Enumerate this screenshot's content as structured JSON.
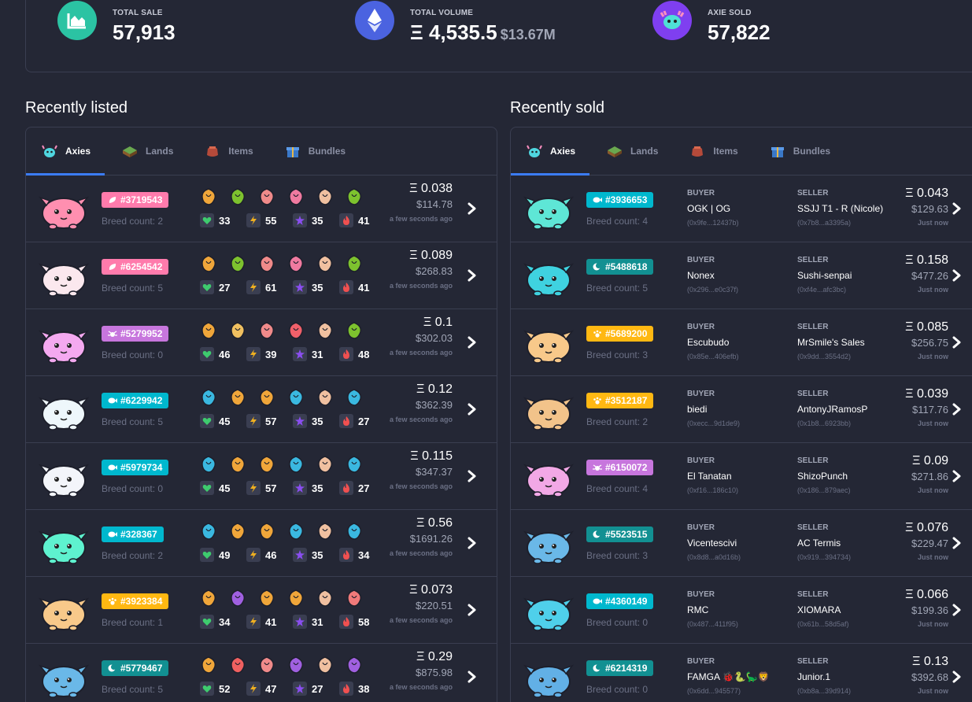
{
  "stats": {
    "total_sale": {
      "label": "TOTAL SALE",
      "value": "57,913"
    },
    "total_volume": {
      "label": "TOTAL VOLUME",
      "value": "Ξ 4,535.5",
      "sub": "$13.67M"
    },
    "axie_sold": {
      "label": "AXIE SOLD",
      "value": "57,822"
    }
  },
  "listed": {
    "title": "Recently listed",
    "tabs": [
      "Axies",
      "Lands",
      "Items",
      "Bundles"
    ],
    "rows": [
      {
        "id": "#3719543",
        "cls": "plant",
        "color": "#ff7bac",
        "body": "#ff8fb0",
        "breed": "Breed count: 2",
        "hp": "33",
        "spd": "55",
        "skl": "35",
        "mor": "41",
        "eth": "Ξ 0.038",
        "usd": "$114.78",
        "ago": "a few seconds ago"
      },
      {
        "id": "#6254542",
        "cls": "plant",
        "color": "#ff7bac",
        "body": "#fbe8ee",
        "breed": "Breed count: 5",
        "hp": "27",
        "spd": "61",
        "skl": "35",
        "mor": "41",
        "eth": "Ξ 0.089",
        "usd": "$268.83",
        "ago": "a few seconds ago"
      },
      {
        "id": "#5279952",
        "cls": "bug",
        "color": "#c776dd",
        "body": "#f4a9f0",
        "breed": "Breed count: 0",
        "hp": "46",
        "spd": "39",
        "skl": "31",
        "mor": "48",
        "eth": "Ξ 0.1",
        "usd": "$302.03",
        "ago": "a few seconds ago"
      },
      {
        "id": "#6229942",
        "cls": "aqua",
        "color": "#00b8ce",
        "body": "#eef7fb",
        "breed": "Breed count: 5",
        "hp": "45",
        "spd": "57",
        "skl": "35",
        "mor": "27",
        "eth": "Ξ 0.12",
        "usd": "$362.39",
        "ago": "a few seconds ago"
      },
      {
        "id": "#5979734",
        "cls": "aqua",
        "color": "#00b8ce",
        "body": "#f3f5fa",
        "breed": "Breed count: 0",
        "hp": "45",
        "spd": "57",
        "skl": "35",
        "mor": "27",
        "eth": "Ξ 0.115",
        "usd": "$347.37",
        "ago": "a few seconds ago"
      },
      {
        "id": "#328367",
        "cls": "aqua",
        "color": "#00b8ce",
        "body": "#5ef2cf",
        "breed": "Breed count: 2",
        "hp": "49",
        "spd": "46",
        "skl": "35",
        "mor": "34",
        "eth": "Ξ 0.56",
        "usd": "$1691.26",
        "ago": "a few seconds ago"
      },
      {
        "id": "#3923384",
        "cls": "beast",
        "color": "#ffb812",
        "body": "#f8c98a",
        "breed": "Breed count: 1",
        "hp": "34",
        "spd": "41",
        "skl": "31",
        "mor": "58",
        "eth": "Ξ 0.073",
        "usd": "$220.51",
        "ago": "a few seconds ago"
      },
      {
        "id": "#5779467",
        "cls": "dusk",
        "color": "#129092",
        "body": "#6ab8e8",
        "breed": "Breed count: 5",
        "hp": "52",
        "spd": "47",
        "skl": "27",
        "mor": "38",
        "eth": "Ξ 0.29",
        "usd": "$875.98",
        "ago": "a few seconds ago"
      }
    ]
  },
  "sold": {
    "title": "Recently sold",
    "tabs": [
      "Axies",
      "Lands",
      "Items",
      "Bundles"
    ],
    "buyer_label": "BUYER",
    "seller_label": "SELLER",
    "rows": [
      {
        "id": "#3936653",
        "cls": "aqua",
        "color": "#00b8ce",
        "body": "#5ee6d6",
        "breed": "Breed count: 4",
        "buyer": "OGK | OG",
        "baddr": "(0x9fe...12437b)",
        "seller": "SSJJ T1 - R (Nicole)",
        "saddr": "(0x7b8...a3395a)",
        "eth": "Ξ 0.043",
        "usd": "$129.63",
        "ago": "Just now"
      },
      {
        "id": "#5488618",
        "cls": "dusk",
        "color": "#129092",
        "body": "#3fd2e0",
        "breed": "Breed count: 5",
        "buyer": "Nonex",
        "baddr": "(0x296...e0c37f)",
        "seller": "Sushi-senpai",
        "saddr": "(0xf4e...afc3bc)",
        "eth": "Ξ 0.158",
        "usd": "$477.26",
        "ago": "Just now"
      },
      {
        "id": "#5689200",
        "cls": "beast",
        "color": "#ffb812",
        "body": "#f8c98a",
        "breed": "Breed count: 3",
        "buyer": "Escubudo",
        "baddr": "(0x85e...406efb)",
        "seller": "MrSmile's Sales",
        "saddr": "(0x9dd...3554d2)",
        "eth": "Ξ 0.085",
        "usd": "$256.75",
        "ago": "Just now"
      },
      {
        "id": "#3512187",
        "cls": "beast",
        "color": "#ffb812",
        "body": "#f2c38a",
        "breed": "Breed count: 2",
        "buyer": "biedi",
        "baddr": "(0xecc...9d1de9)",
        "seller": "AntonyJRamosP",
        "saddr": "(0x1b8...6923bb)",
        "eth": "Ξ 0.039",
        "usd": "$117.76",
        "ago": "Just now"
      },
      {
        "id": "#6150072",
        "cls": "bug",
        "color": "#c776dd",
        "body": "#f2a8e6",
        "breed": "Breed count: 4",
        "buyer": "El Tanatan",
        "baddr": "(0xf16...186c10)",
        "seller": "ShizoPunch",
        "saddr": "(0x186...879aec)",
        "eth": "Ξ 0.09",
        "usd": "$271.86",
        "ago": "Just now"
      },
      {
        "id": "#5523515",
        "cls": "dusk",
        "color": "#129092",
        "body": "#6ab8e8",
        "breed": "Breed count: 3",
        "buyer": "Vicentescivi",
        "baddr": "(0x8d8...a0d16b)",
        "seller": "AC Termis",
        "saddr": "(0x919...394734)",
        "eth": "Ξ 0.076",
        "usd": "$229.47",
        "ago": "Just now"
      },
      {
        "id": "#4360149",
        "cls": "aqua",
        "color": "#00b8ce",
        "body": "#4fd0ea",
        "breed": "Breed count: 0",
        "buyer": "RMC",
        "baddr": "(0x487...411f95)",
        "seller": "XIOMARA",
        "saddr": "(0x61b...58d5af)",
        "eth": "Ξ 0.066",
        "usd": "$199.36",
        "ago": "Just now"
      },
      {
        "id": "#6214319",
        "cls": "dusk",
        "color": "#129092",
        "body": "#62b0e6",
        "breed": "Breed count: 0",
        "buyer": "FAMGA 🐞🐍🦕🦁",
        "baddr": "(0x6dd...945577)",
        "seller": "Junior.1",
        "saddr": "(0xb8a...39d914)",
        "eth": "Ξ 0.13",
        "usd": "$392.68",
        "ago": "Just now"
      }
    ]
  }
}
